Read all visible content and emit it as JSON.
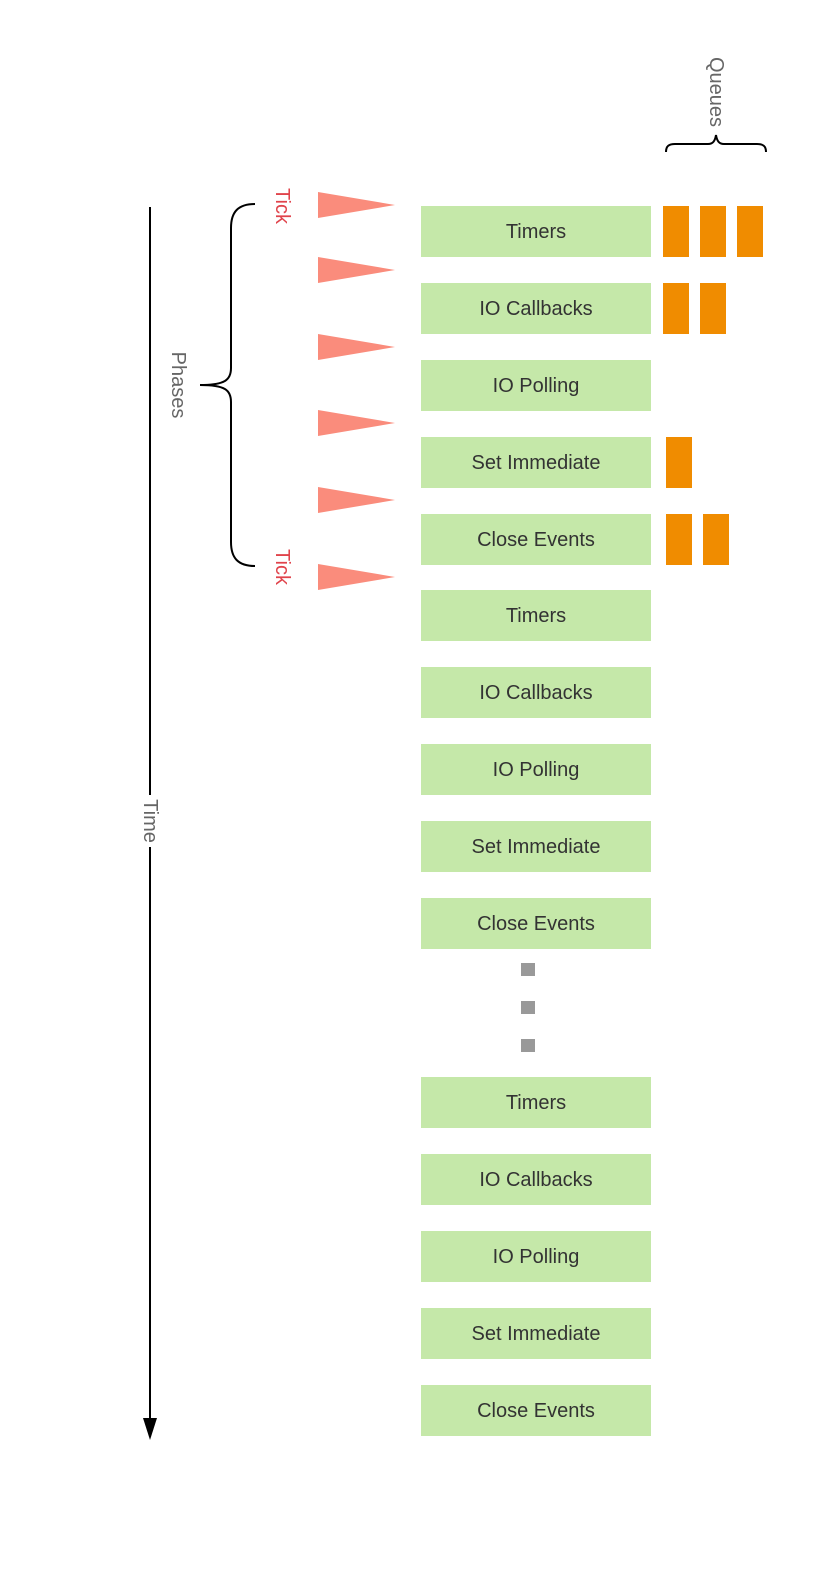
{
  "labels": {
    "time": "Time",
    "phases": "Phases",
    "tick_start": "Tick",
    "tick_end": "Tick",
    "queues": "Queues"
  },
  "loops": [
    {
      "phases": [
        "Timers",
        "IO Callbacks",
        "IO Polling",
        "Set Immediate",
        "Close Events"
      ]
    },
    {
      "phases": [
        "Timers",
        "IO Callbacks",
        "IO Polling",
        "Set Immediate",
        "Close Events"
      ]
    },
    {
      "phases": [
        "Timers",
        "IO Callbacks",
        "IO Polling",
        "Set Immediate",
        "Close Events"
      ]
    }
  ],
  "queue_counts": [
    3,
    2,
    0,
    1,
    2
  ],
  "colors": {
    "phase_box": "#c5e8a9",
    "queue_item": "#f08c00",
    "tick_marker": "#fa8c7c",
    "tick_text": "#e0444c",
    "ellipsis": "#999999",
    "axis": "#000000",
    "label_gray": "#666666"
  }
}
